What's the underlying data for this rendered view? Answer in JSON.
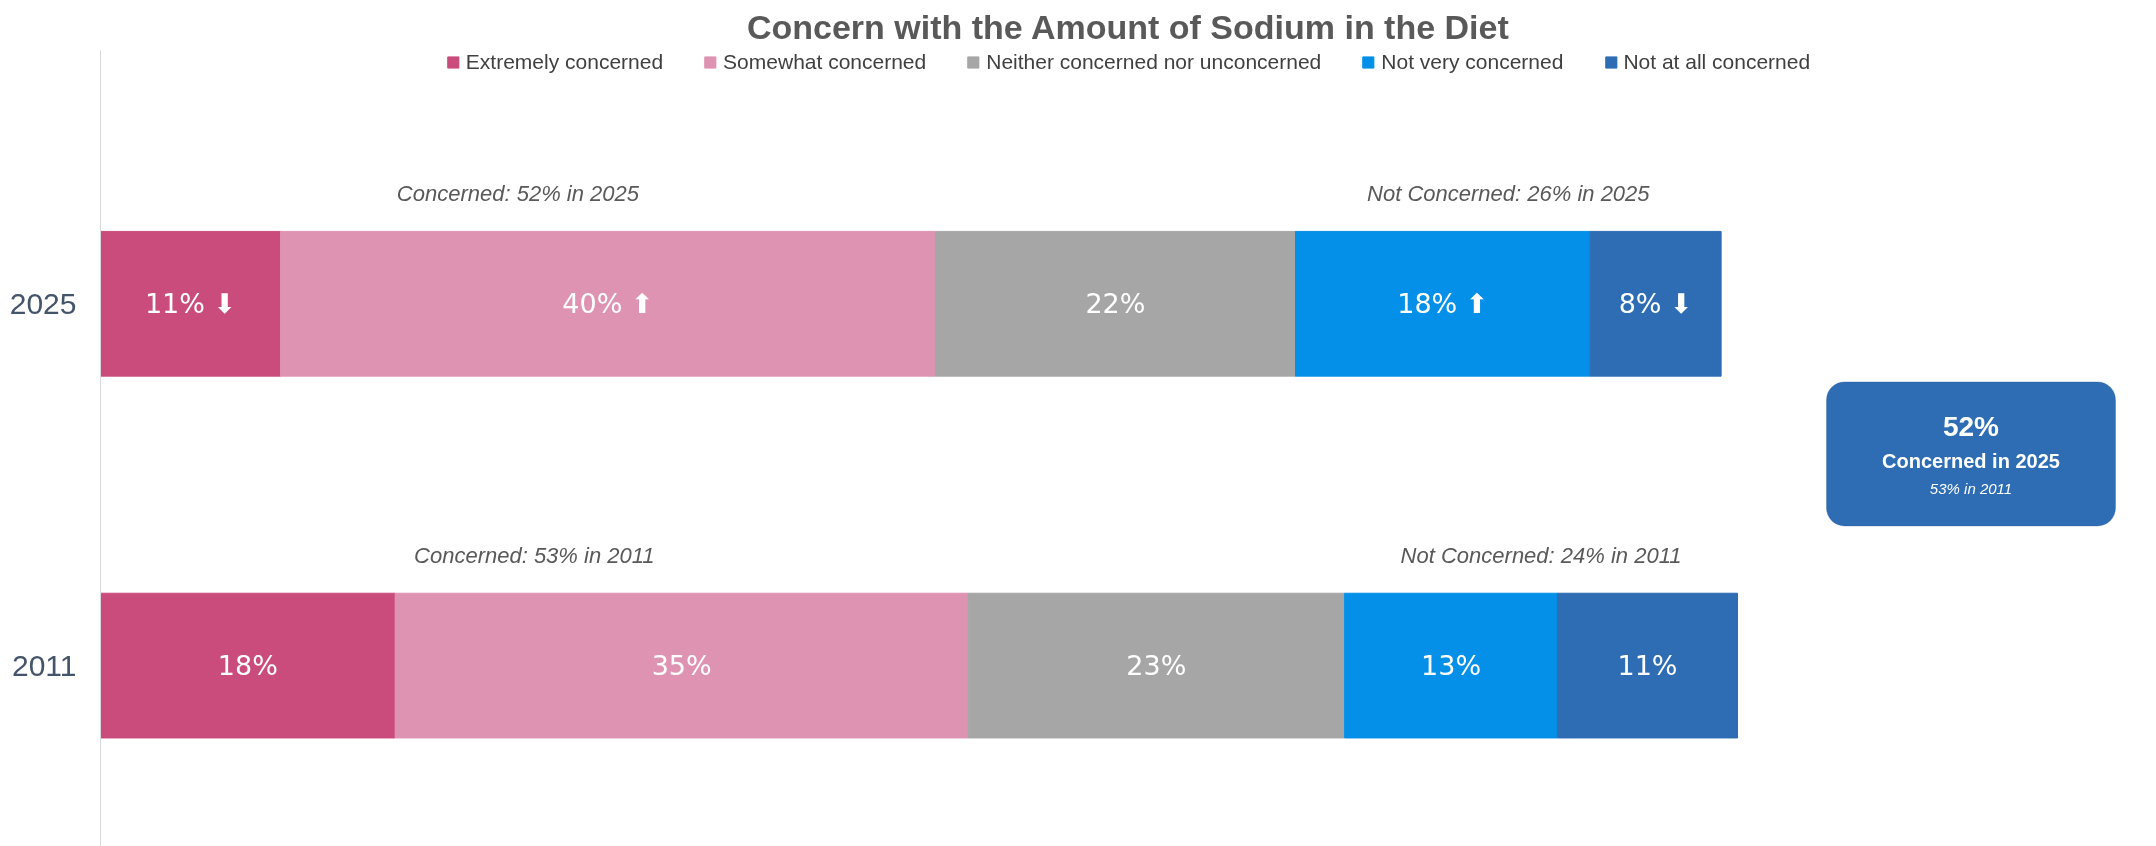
{
  "chart_data": {
    "type": "bar",
    "orientation": "horizontal",
    "stacked": true,
    "title": "Concern with the Amount of Sodium in the Diet",
    "categories": [
      "2025",
      "2011"
    ],
    "series": [
      {
        "name": "Extremely concerned",
        "color": "#c94c7c",
        "values": [
          11,
          18
        ],
        "value_labels": [
          "11% ⬇",
          "18%"
        ]
      },
      {
        "name": "Somewhat concerned",
        "color": "#df93b2",
        "values": [
          40,
          35
        ],
        "value_labels": [
          "40% ⬆",
          "35%"
        ]
      },
      {
        "name": "Neither concerned nor unconcerned",
        "color": "#a6a6a6",
        "values": [
          22,
          23
        ],
        "value_labels": [
          "22%",
          "23%"
        ]
      },
      {
        "name": "Not very concerned",
        "color": "#0490e8",
        "values": [
          18,
          13
        ],
        "value_labels": [
          "18% ⬆",
          "13%"
        ]
      },
      {
        "name": "Not at all concerned",
        "color": "#2e6db4",
        "values": [
          8,
          11
        ],
        "value_labels": [
          "8% ⬇",
          "11%"
        ]
      }
    ],
    "annotations": [
      "Concerned: 52% in 2025",
      "Not Concerned: 26% in 2025",
      "Concerned: 53% in 2011",
      "Not Concerned: 24% in 2011",
      "52%",
      "Concerned in 2025",
      "53% in 2011"
    ],
    "legend": "top",
    "grid": false
  }
}
